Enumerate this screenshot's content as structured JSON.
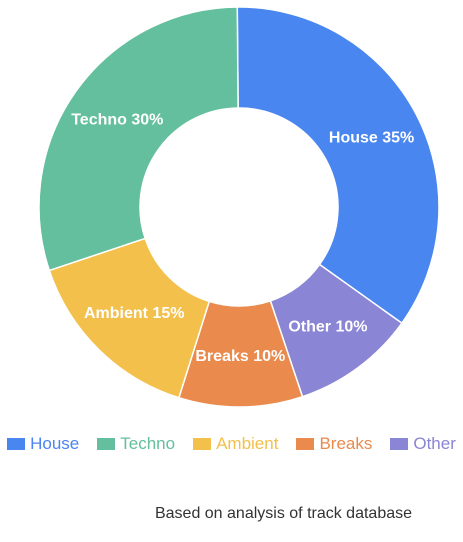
{
  "chart_data": {
    "type": "pie",
    "variant": "doughnut",
    "title": "",
    "categories": [
      "House",
      "Techno",
      "Ambient",
      "Breaks",
      "Other"
    ],
    "values": [
      35,
      30,
      15,
      10,
      10
    ],
    "labels": [
      "House 35%",
      "Techno 30%",
      "Ambient 15%",
      "Breaks 10%",
      "Other 10%"
    ],
    "colors": [
      "#4a86f0",
      "#63bf9e",
      "#f2c04b",
      "#ea8a4d",
      "#8a85d4"
    ],
    "legend_position": "bottom",
    "slice_order_clockwise_from_top": [
      "House",
      "Other",
      "Breaks",
      "Ambient",
      "Techno"
    ]
  },
  "legend": {
    "items": [
      {
        "label": "House",
        "color": "#4a86f0"
      },
      {
        "label": "Techno",
        "color": "#63bf9e"
      },
      {
        "label": "Ambient",
        "color": "#f2c04b"
      },
      {
        "label": "Breaks",
        "color": "#ea8a4d"
      },
      {
        "label": "Other",
        "color": "#8a85d4"
      }
    ]
  },
  "footnote": "Based on analysis of track database"
}
